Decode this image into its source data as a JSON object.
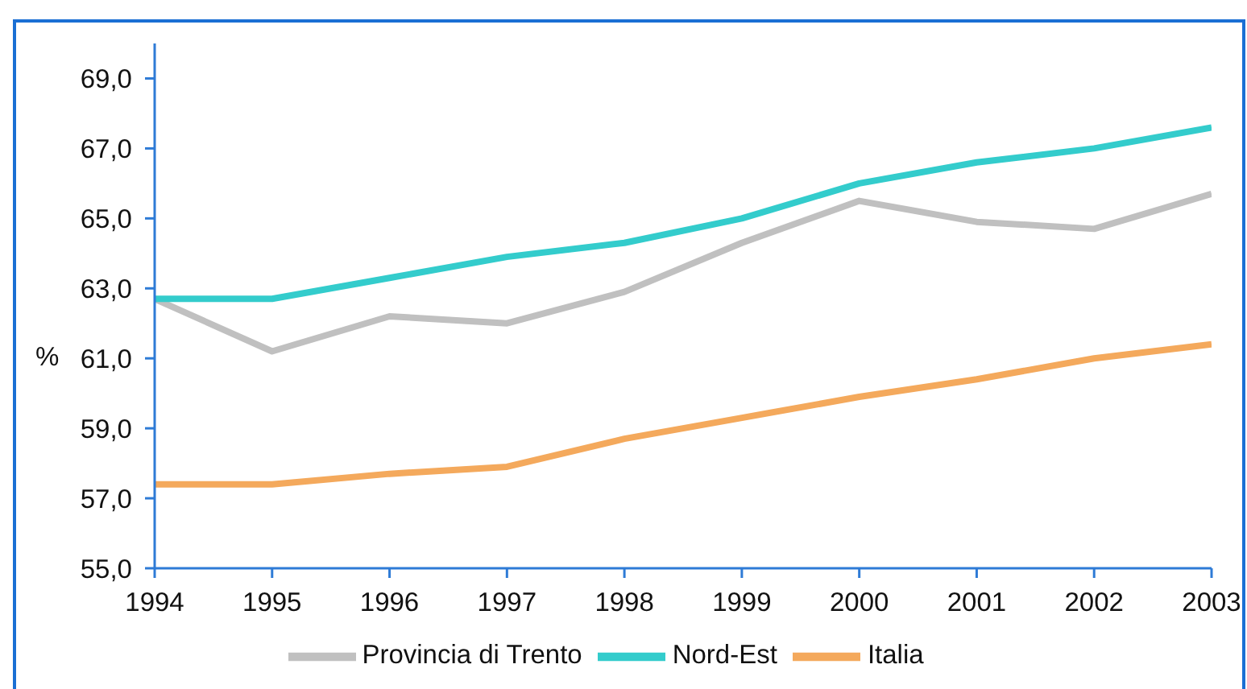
{
  "chart_data": {
    "type": "line",
    "ylabel": "%",
    "x": [
      1994,
      1995,
      1996,
      1997,
      1998,
      1999,
      2000,
      2001,
      2002,
      2003
    ],
    "xlim": [
      1994,
      2003
    ],
    "xticks": [
      1994,
      1995,
      1996,
      1997,
      1998,
      1999,
      2000,
      2001,
      2002,
      2003
    ],
    "ylim": [
      55,
      70
    ],
    "yticks": [
      {
        "value": 55,
        "label": "55,0"
      },
      {
        "value": 57,
        "label": "57,0"
      },
      {
        "value": 59,
        "label": "59,0"
      },
      {
        "value": 61,
        "label": "61,0"
      },
      {
        "value": 63,
        "label": "63,0"
      },
      {
        "value": 65,
        "label": "65,0"
      },
      {
        "value": 67,
        "label": "67,0"
      },
      {
        "value": 69,
        "label": "69,0"
      }
    ],
    "series": [
      {
        "name": "Provincia di Trento",
        "color": "#c0c0c0",
        "values": [
          62.7,
          61.2,
          62.2,
          62.0,
          62.9,
          64.3,
          65.5,
          64.9,
          64.7,
          65.7
        ]
      },
      {
        "name": "Nord-Est",
        "color": "#33cccc",
        "values": [
          62.7,
          62.7,
          63.3,
          63.9,
          64.3,
          65.0,
          66.0,
          66.6,
          67.0,
          67.6
        ]
      },
      {
        "name": "Italia",
        "color": "#f4a95c",
        "values": [
          57.4,
          57.4,
          57.7,
          57.9,
          58.7,
          59.3,
          59.9,
          60.4,
          61.0,
          61.4
        ]
      }
    ],
    "legend": "bottom"
  }
}
